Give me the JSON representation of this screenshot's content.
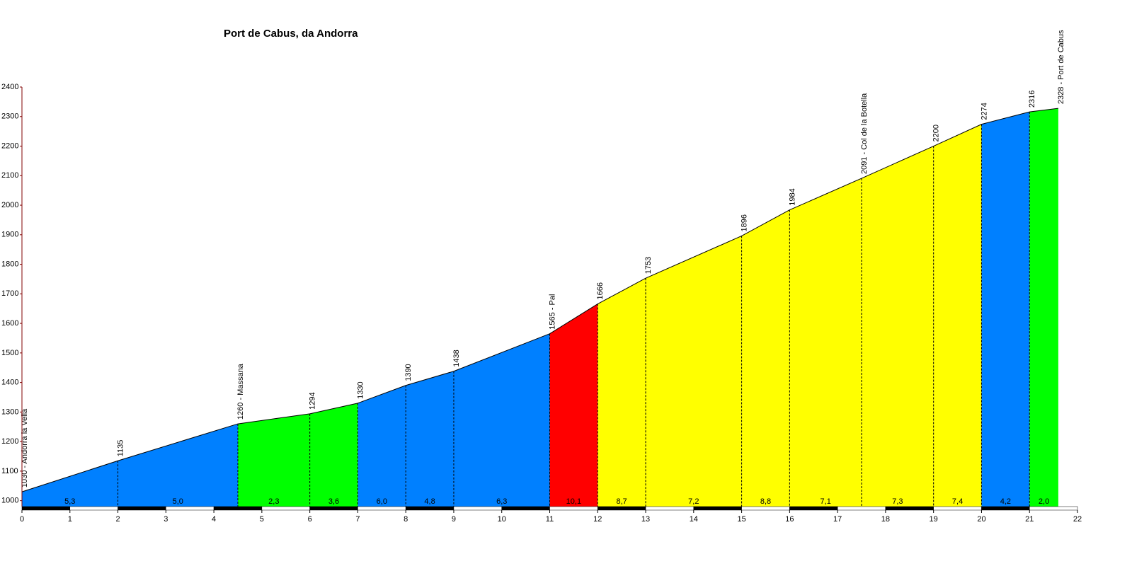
{
  "chart_data": {
    "type": "profile",
    "title": "Port de Cabus, da Andorra",
    "x": [
      0,
      2,
      4.5,
      6,
      7,
      8,
      9,
      11,
      12,
      13,
      15,
      16,
      17.5,
      19,
      20,
      21,
      21.6
    ],
    "values": [
      1030,
      1135,
      1260,
      1294,
      1330,
      1390,
      1438,
      1565,
      1666,
      1753,
      1896,
      1984,
      2091,
      2200,
      2274,
      2316,
      2328
    ],
    "value_labels": [
      "1030 - Andorra la Vella",
      "1135",
      "1260 - Massana",
      "1294",
      "1330",
      "1390",
      "1438",
      "1565 - Pal",
      "1666",
      "1753",
      "1896",
      "1984",
      "2091 - Col de la Botella",
      "2200",
      "2274",
      "2316",
      "2328 - Port de Cabus"
    ],
    "segments": {
      "colors": [
        "#0080ff",
        "#0080ff",
        "#00ff00",
        "#00ff00",
        "#0080ff",
        "#0080ff",
        "#0080ff",
        "#ff0000",
        "#ffff00",
        "#ffff00",
        "#ffff00",
        "#ffff00",
        "#ffff00",
        "#ffff00",
        "#0080ff",
        "#00ff00"
      ],
      "gradients": [
        5.3,
        5.0,
        2.3,
        3.6,
        6.0,
        4.8,
        6.3,
        10.1,
        8.7,
        7.2,
        8.8,
        7.1,
        7.3,
        7.4,
        4.2,
        2.0
      ],
      "gradient_labels": [
        "5,3",
        "5,0",
        "2,3",
        "3,6",
        "6,0",
        "4,8",
        "6,3",
        "10,1",
        "8,7",
        "7,2",
        "8,8",
        "7,1",
        "7,3",
        "7,4",
        "4,2",
        "2,0"
      ]
    },
    "xlim": [
      0,
      22
    ],
    "xticks": [
      0,
      1,
      2,
      3,
      4,
      5,
      6,
      7,
      8,
      9,
      10,
      11,
      12,
      13,
      14,
      15,
      16,
      17,
      18,
      19,
      20,
      21,
      22
    ],
    "ylim": [
      980,
      2400
    ],
    "yticks": [
      1000,
      1100,
      1200,
      1300,
      1400,
      1500,
      1600,
      1700,
      1800,
      1900,
      2000,
      2100,
      2200,
      2300,
      2400
    ]
  }
}
